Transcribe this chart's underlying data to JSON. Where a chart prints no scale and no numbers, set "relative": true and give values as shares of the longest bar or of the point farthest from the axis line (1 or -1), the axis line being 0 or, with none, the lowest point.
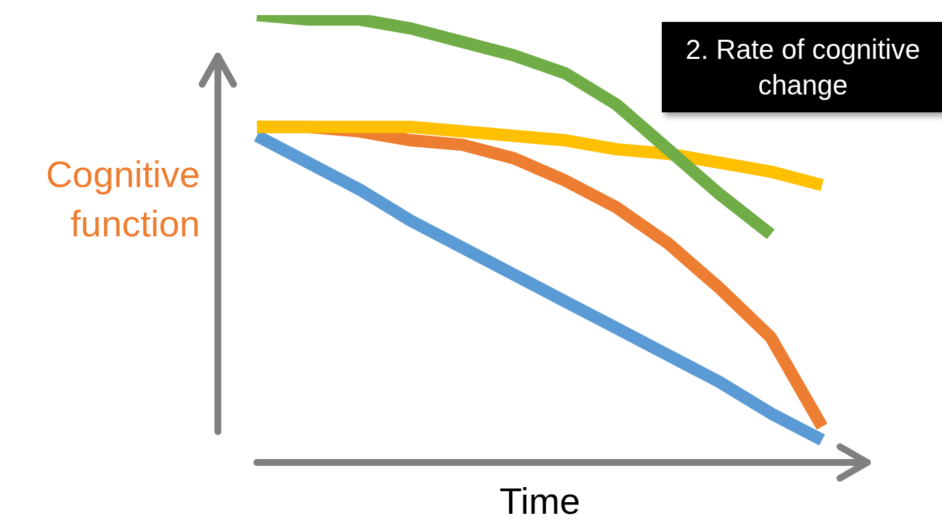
{
  "chart_data": {
    "type": "line",
    "relative": true,
    "xlabel": "Time",
    "ylabel": "Cognitive function",
    "annotations": [
      "2. Rate of cognitive change"
    ],
    "categories": [
      null,
      null,
      null,
      null,
      null,
      null,
      null,
      null,
      null,
      null,
      null,
      null
    ],
    "series": [
      {
        "color": "#5b9bd5",
        "values": [
          0.73,
          0.67,
          0.61,
          0.54,
          0.48,
          0.42,
          0.36,
          0.3,
          0.24,
          0.18,
          0.11,
          0.05
        ]
      },
      {
        "color": "#ed7d31",
        "values": [
          0.75,
          0.75,
          0.74,
          0.72,
          0.71,
          0.68,
          0.63,
          0.57,
          0.49,
          0.39,
          0.28,
          0.08
        ]
      },
      {
        "color": "#ffc000",
        "values": [
          0.75,
          0.75,
          0.75,
          0.75,
          0.74,
          0.73,
          0.72,
          0.7,
          0.69,
          0.67,
          0.65,
          0.62
        ]
      },
      {
        "color": "#70ad47",
        "values": [
          1.0,
          0.99,
          0.99,
          0.97,
          0.94,
          0.91,
          0.87,
          0.8,
          0.7,
          0.6,
          0.51,
          null
        ]
      }
    ]
  }
}
